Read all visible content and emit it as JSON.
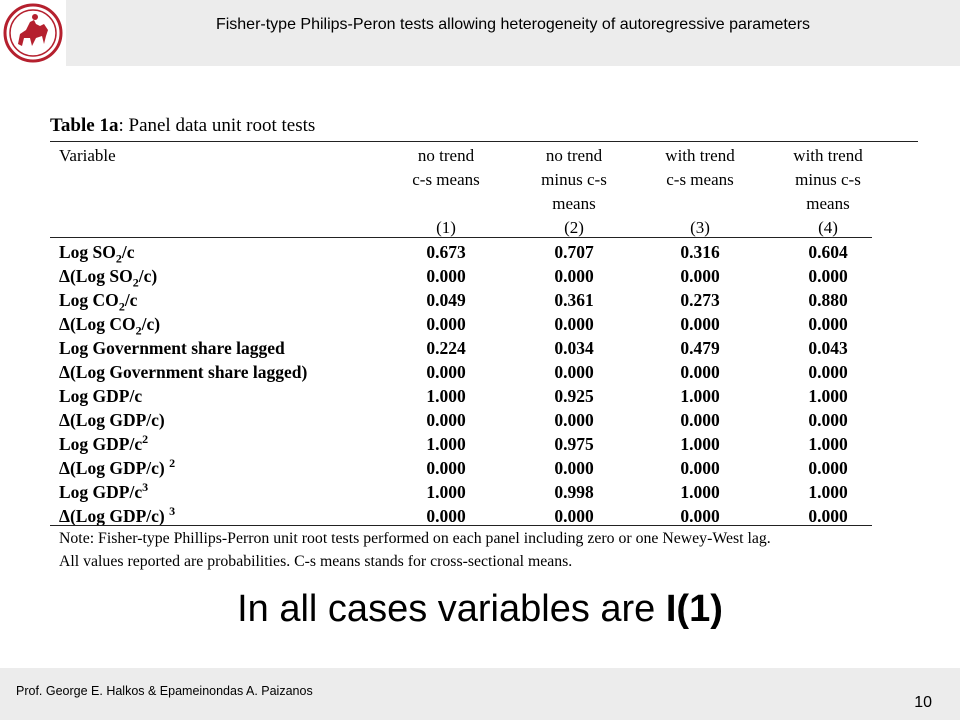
{
  "header": {
    "title": "Fisher-type Philips-Peron tests allowing heterogeneity of autoregressive parameters"
  },
  "table": {
    "caption_bold": "Table 1a",
    "caption_rest": ":  Panel data unit root tests",
    "variable_header": "Variable",
    "columns": [
      {
        "lines": [
          "no trend",
          "c-s means"
        ],
        "number": "(1)"
      },
      {
        "lines": [
          "no trend",
          "minus c-s",
          "means"
        ],
        "number": "(2)"
      },
      {
        "lines": [
          "with trend",
          "c-s means"
        ],
        "number": "(3)"
      },
      {
        "lines": [
          "with trend",
          "minus c-s",
          "means"
        ],
        "number": "(4)"
      }
    ],
    "rows": [
      {
        "label": [
          "Log SO",
          "2",
          "/c"
        ],
        "values": [
          "0.673",
          "0.707",
          "0.316",
          "0.604"
        ]
      },
      {
        "label": [
          "Δ(Log SO",
          "2",
          "/c)"
        ],
        "values": [
          "0.000",
          "0.000",
          "0.000",
          "0.000"
        ]
      },
      {
        "label": [
          "Log CO",
          "2",
          "/c"
        ],
        "values": [
          "0.049",
          "0.361",
          "0.273",
          "0.880"
        ]
      },
      {
        "label": [
          "Δ(Log CO",
          "2",
          "/c)"
        ],
        "values": [
          "0.000",
          "0.000",
          "0.000",
          "0.000"
        ]
      },
      {
        "label": [
          "Log Government share lagged"
        ],
        "values": [
          "0.224",
          "0.034",
          "0.479",
          "0.043"
        ]
      },
      {
        "label": [
          "Δ(Log Government share lagged)"
        ],
        "values": [
          "0.000",
          "0.000",
          "0.000",
          "0.000"
        ]
      },
      {
        "label": [
          "Log GDP/c"
        ],
        "values": [
          "1.000",
          "0.925",
          "1.000",
          "1.000"
        ]
      },
      {
        "label": [
          "Δ(Log GDP/c)"
        ],
        "values": [
          "0.000",
          "0.000",
          "0.000",
          "0.000"
        ]
      },
      {
        "label": [
          "Log GDP/c",
          "2"
        ],
        "values": [
          "1.000",
          "0.975",
          "1.000",
          "1.000"
        ]
      },
      {
        "label": [
          "Δ(Log GDP/c) ",
          "2"
        ],
        "values": [
          "0.000",
          "0.000",
          "0.000",
          "0.000"
        ]
      },
      {
        "label": [
          "Log GDP/c",
          "3"
        ],
        "values": [
          "1.000",
          "0.998",
          "1.000",
          "1.000"
        ]
      },
      {
        "label": [
          "Δ(Log GDP/c) ",
          "3"
        ],
        "values": [
          "0.000",
          "0.000",
          "0.000",
          "0.000"
        ]
      }
    ],
    "note_line1": "Note: Fisher-type Phillips-Perron unit root tests performed on each panel including zero or one Newey-West lag.",
    "note_line2": "All values reported are probabilities. C-s means stands for cross-sectional means."
  },
  "conclusion": {
    "text": "In all cases variables are ",
    "bold": "I(1)"
  },
  "footer": {
    "authors": "Prof. George E. Halkos & Epameinondas A. Paizanos",
    "page_number": "10"
  },
  "colors": {
    "logo": "#b5202e",
    "band": "#ececec"
  }
}
